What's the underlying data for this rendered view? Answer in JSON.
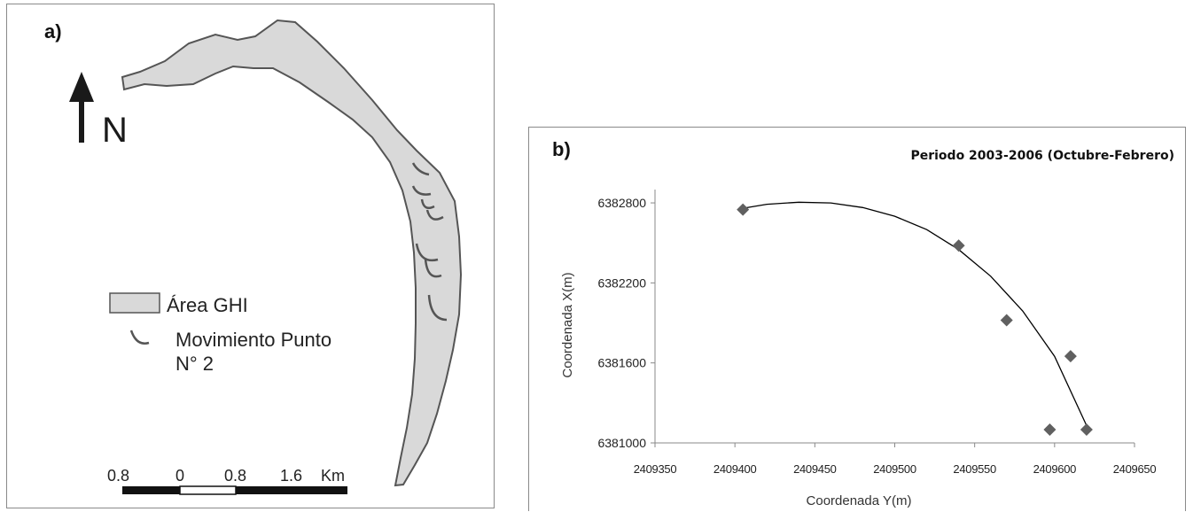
{
  "panel_a": {
    "label": "a)",
    "north_label": "N",
    "legend": {
      "area_label": "Área GHI",
      "movement_label_line1": "Movimiento Punto",
      "movement_label_line2": "N° 2"
    },
    "scale_bar": {
      "ticks": [
        "0.8",
        "0",
        "0.8",
        "1.6"
      ],
      "unit": "Km"
    },
    "colors": {
      "area_fill": "#d9d9d9",
      "outline": "#555555",
      "movement": "#555555"
    }
  },
  "panel_b": {
    "label": "b)",
    "colors": {
      "marker": "#606060",
      "trend": "#000000"
    }
  },
  "chart_data": {
    "type": "scatter",
    "title": "Periodo 2003-2006 (Octubre-Febrero)",
    "xlabel": "Coordenada Y(m)",
    "ylabel": "Coordenada X(m)",
    "xlim": [
      2409350,
      2409650
    ],
    "ylim": [
      6381000,
      6382900
    ],
    "x_ticks": [
      2409350,
      2409400,
      2409450,
      2409500,
      2409550,
      2409600,
      2409650
    ],
    "y_ticks": [
      6381000,
      6381600,
      6382200,
      6382800
    ],
    "grid": false,
    "series": [
      {
        "points": [
          {
            "x": 2409405,
            "y": 6382750
          },
          {
            "x": 2409540,
            "y": 6382480
          },
          {
            "x": 2409570,
            "y": 6381920
          },
          {
            "x": 2409597,
            "y": 6381100
          },
          {
            "x": 2409610,
            "y": 6381650
          },
          {
            "x": 2409620,
            "y": 6381100
          }
        ]
      }
    ],
    "trendline": {
      "type": "polynomial",
      "points": [
        {
          "x": 2409405,
          "y": 6382760
        },
        {
          "x": 2409420,
          "y": 6382790
        },
        {
          "x": 2409440,
          "y": 6382805
        },
        {
          "x": 2409460,
          "y": 6382800
        },
        {
          "x": 2409480,
          "y": 6382765
        },
        {
          "x": 2409500,
          "y": 6382700
        },
        {
          "x": 2409520,
          "y": 6382600
        },
        {
          "x": 2409540,
          "y": 6382450
        },
        {
          "x": 2409560,
          "y": 6382250
        },
        {
          "x": 2409580,
          "y": 6381990
        },
        {
          "x": 2409600,
          "y": 6381650
        },
        {
          "x": 2409620,
          "y": 6381130
        }
      ]
    }
  }
}
